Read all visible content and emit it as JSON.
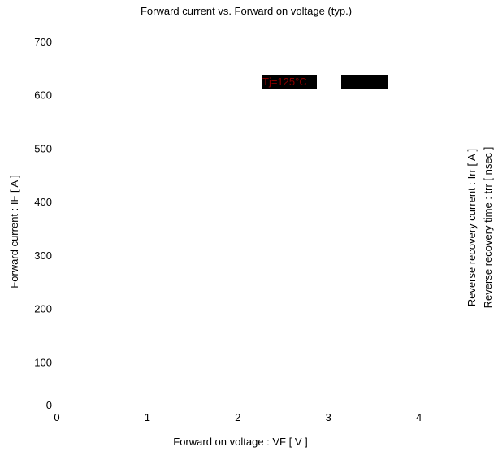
{
  "chart_data": {
    "type": "line",
    "title": "Forward current  vs.  Forward on voltage  (typ.)",
    "xlabel": "Forward on voltage  :  VF  [ V ]",
    "ylabel": "Forward current  :  IF  [ A ]",
    "y2labels": [
      "Reverse recovery current  :  Irr  [ A ]",
      "Reverse recovery time  :  trr  [ nsec ]"
    ],
    "xlim": [
      0,
      5
    ],
    "ylim": [
      0,
      700
    ],
    "xticks": [
      0,
      1,
      2,
      3,
      4
    ],
    "yticks": [
      0,
      100,
      200,
      300,
      400,
      500,
      600,
      700
    ],
    "grid": false,
    "legend": {
      "entries": [
        {
          "label": "Tj=125°C",
          "color": "#8b0000",
          "box_color": "#000000"
        },
        {
          "label": "",
          "color": "#000000",
          "box_color": "#000000"
        }
      ]
    },
    "series": []
  }
}
